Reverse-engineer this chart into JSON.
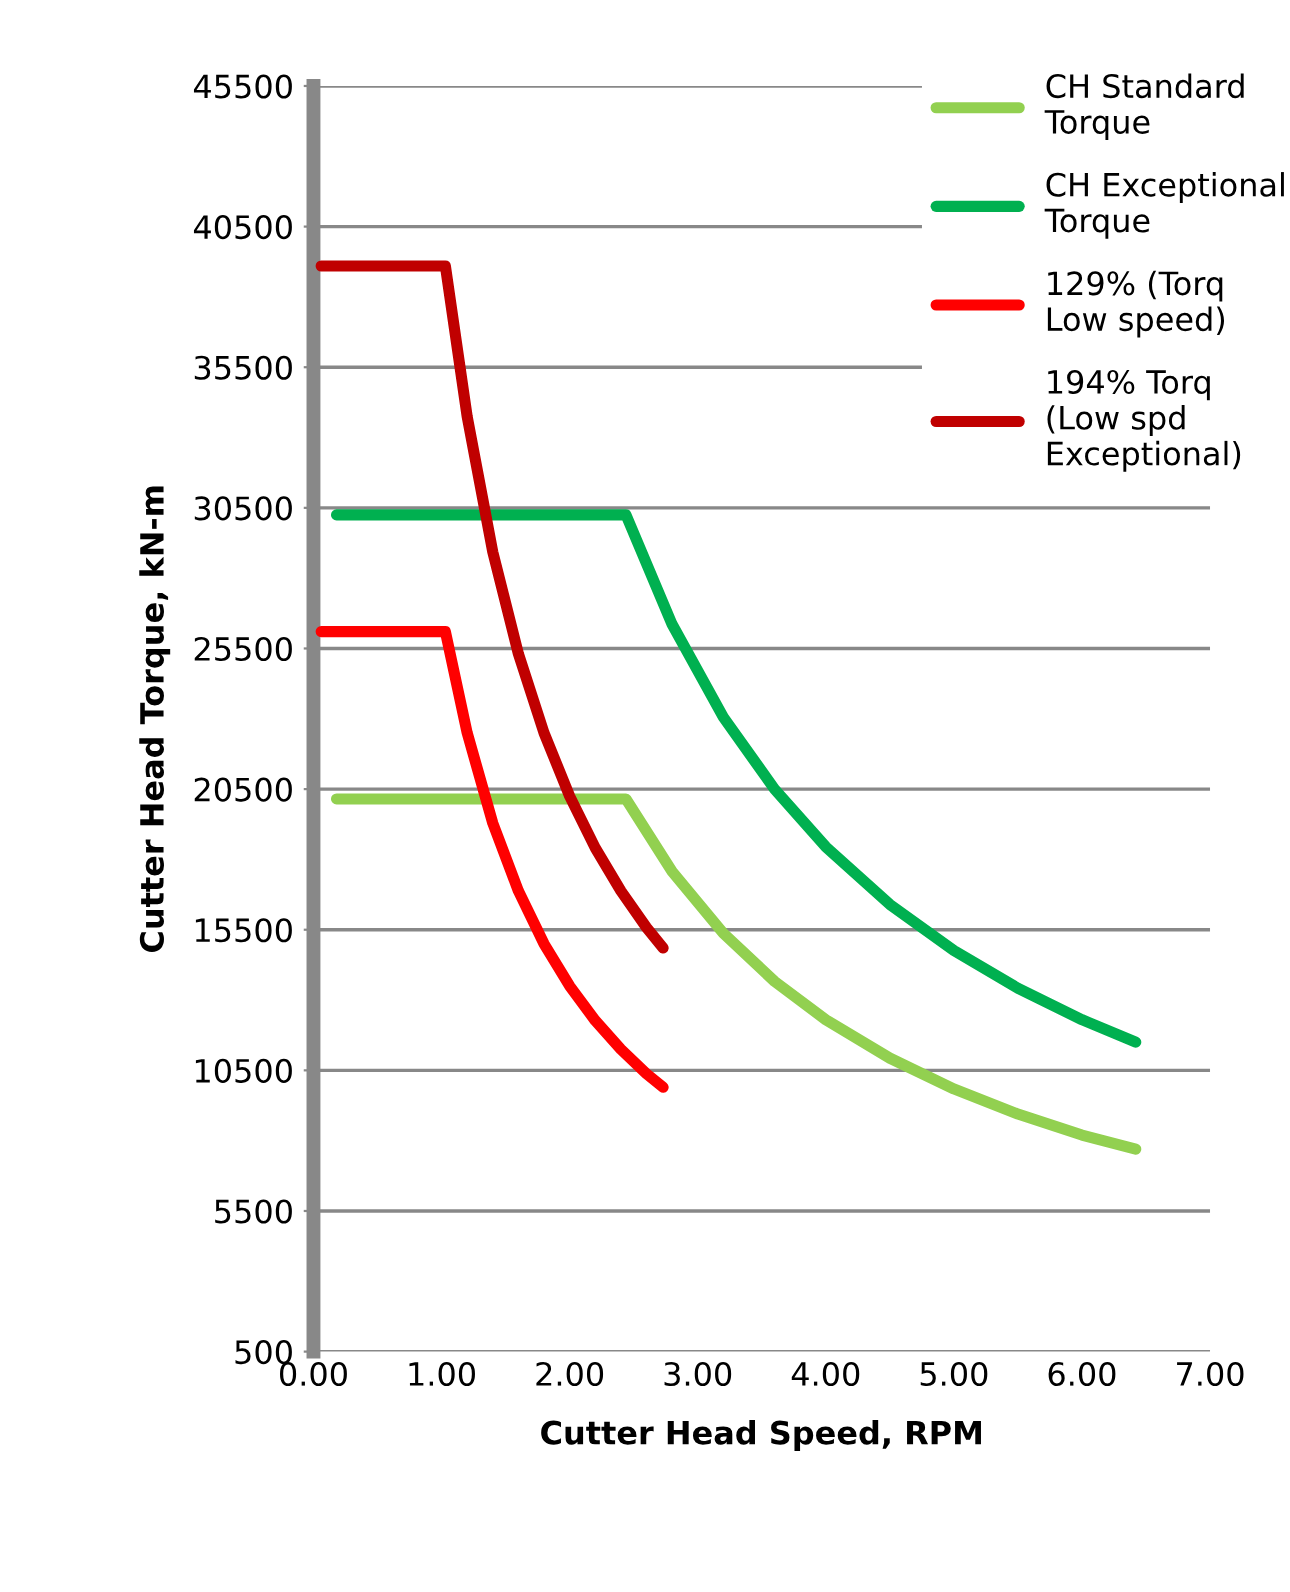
{
  "chart_data": {
    "type": "line",
    "xlabel": "Cutter Head Speed, RPM",
    "ylabel": "Cutter Head Torque, kN-m",
    "xlim": [
      0,
      7
    ],
    "xticks": [
      {
        "value": 0,
        "label": "0.00"
      },
      {
        "value": 1,
        "label": "1.00"
      },
      {
        "value": 2,
        "label": "2.00"
      },
      {
        "value": 3,
        "label": "3.00"
      },
      {
        "value": 4,
        "label": "4.00"
      },
      {
        "value": 5,
        "label": "5.00"
      },
      {
        "value": 6,
        "label": "6.00"
      },
      {
        "value": 7,
        "label": "7.00"
      }
    ],
    "ylim": [
      500,
      45500
    ],
    "yticks": [
      500,
      5500,
      10500,
      15500,
      20500,
      25500,
      30500,
      35500,
      40500,
      45500
    ],
    "grid": "y",
    "legend": "top right",
    "marker": "none",
    "line_style": "solid",
    "series": [
      {
        "name": "CH Standard\nTorque",
        "color": "#92d050",
        "x": [
          0.18,
          2.44,
          2.8,
          3.2,
          3.6,
          4.0,
          4.5,
          5.0,
          5.5,
          6.0,
          6.42
        ],
        "values": [
          20150,
          20150,
          17570,
          15375,
          13665,
          12300,
          10935,
          9840,
          8945,
          8200,
          7700
        ]
      },
      {
        "name": "CH Exceptional\nTorque",
        "color": "#00b050",
        "x": [
          0.18,
          2.44,
          2.8,
          3.2,
          3.6,
          4.0,
          4.5,
          5.0,
          5.5,
          6.0,
          6.42
        ],
        "values": [
          30250,
          30250,
          26360,
          23060,
          20500,
          18450,
          16400,
          14760,
          13420,
          12300,
          11500
        ]
      },
      {
        "name": "129% (Torq\nLow speed)",
        "color": "#ff0000",
        "x": [
          0.06,
          1.03,
          1.2,
          1.4,
          1.6,
          1.8,
          2.0,
          2.2,
          2.4,
          2.6,
          2.73
        ],
        "values": [
          26100,
          26100,
          22500,
          19290,
          16880,
          15000,
          13500,
          12270,
          11250,
          10380,
          9900
        ]
      },
      {
        "name": "194% Torq\n(Low spd\nExceptional)",
        "color": "#c00000",
        "x": [
          0.06,
          1.03,
          1.2,
          1.4,
          1.6,
          1.8,
          2.0,
          2.2,
          2.4,
          2.6,
          2.73
        ],
        "values": [
          39100,
          39100,
          33750,
          28930,
          25310,
          22500,
          20250,
          18410,
          16880,
          15580,
          14850
        ]
      }
    ]
  }
}
